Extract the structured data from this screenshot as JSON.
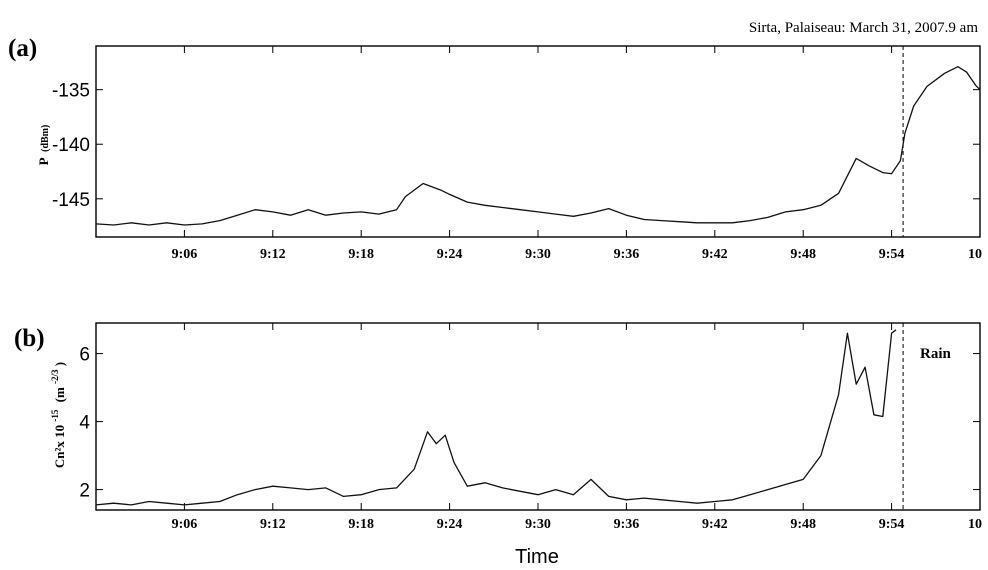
{
  "figure": {
    "title": "Sirta, Palaiseau: March 31, 2007.9 am",
    "xlabel": "Time"
  },
  "chart_data": [
    {
      "type": "line",
      "panel": "(a)",
      "ylabel": "P (dBm)",
      "ylabel_main": "P",
      "ylabel_unit": "(dBm)",
      "xlim": [
        9.0,
        10.0
      ],
      "ylim": [
        -148.5,
        -131
      ],
      "xtick_values": [
        9.1,
        9.2,
        9.3,
        9.4,
        9.5,
        9.6,
        9.7,
        9.8,
        9.9,
        10.0
      ],
      "xtick_labels": [
        "9:06",
        "9:12",
        "9:18",
        "9:24",
        "9:30",
        "9:36",
        "9:42",
        "9:48",
        "9:54",
        "10"
      ],
      "ytick_values": [
        -135,
        -140,
        -145
      ],
      "ytick_labels": [
        "-135",
        "-140",
        "-145"
      ],
      "vline_x": 9.913,
      "grid": false,
      "x": [
        9.0,
        9.02,
        9.04,
        9.06,
        9.08,
        9.1,
        9.12,
        9.14,
        9.16,
        9.18,
        9.2,
        9.22,
        9.24,
        9.26,
        9.28,
        9.3,
        9.32,
        9.34,
        9.35,
        9.37,
        9.39,
        9.4,
        9.42,
        9.44,
        9.46,
        9.48,
        9.5,
        9.52,
        9.54,
        9.56,
        9.58,
        9.6,
        9.62,
        9.64,
        9.66,
        9.68,
        9.7,
        9.72,
        9.74,
        9.76,
        9.78,
        9.8,
        9.82,
        9.84,
        9.86,
        9.875,
        9.89,
        9.9,
        9.91,
        9.915,
        9.925,
        9.94,
        9.96,
        9.975,
        9.985,
        9.995,
        10.0
      ],
      "y": [
        -147.3,
        -147.4,
        -147.2,
        -147.4,
        -147.2,
        -147.4,
        -147.3,
        -147.0,
        -146.5,
        -146.0,
        -146.2,
        -146.5,
        -146.0,
        -146.5,
        -146.3,
        -146.2,
        -146.4,
        -146.0,
        -144.8,
        -143.6,
        -144.2,
        -144.6,
        -145.3,
        -145.6,
        -145.8,
        -146.0,
        -146.2,
        -146.4,
        -146.6,
        -146.3,
        -145.9,
        -146.5,
        -146.9,
        -147.0,
        -147.1,
        -147.2,
        -147.2,
        -147.2,
        -147.0,
        -146.7,
        -146.2,
        -146.0,
        -145.6,
        -144.5,
        -141.3,
        -142.0,
        -142.6,
        -142.7,
        -141.5,
        -139.0,
        -136.5,
        -134.7,
        -133.5,
        -132.9,
        -133.4,
        -134.6,
        -135.0
      ]
    },
    {
      "type": "line",
      "panel": "(b)",
      "ylabel": "Cn² x 10⁻¹⁵ (m⁻²ᐟ³)",
      "ylabel_main": "Cn²x 10",
      "ylabel_exp": "-15",
      "ylabel_unit": "(m",
      "ylabel_unit_exp": "-2/3",
      "ylabel_close": ")",
      "xlim": [
        9.0,
        10.0
      ],
      "ylim": [
        1.4,
        6.9
      ],
      "xtick_values": [
        9.1,
        9.2,
        9.3,
        9.4,
        9.5,
        9.6,
        9.7,
        9.8,
        9.9,
        10.0
      ],
      "xtick_labels": [
        "9:06",
        "9:12",
        "9:18",
        "9:24",
        "9:30",
        "9:36",
        "9:42",
        "9:48",
        "9:54",
        "10"
      ],
      "ytick_values": [
        6,
        4,
        2
      ],
      "ytick_labels": [
        "6",
        "4",
        "2"
      ],
      "vline_x": 9.913,
      "annotation": "Rain",
      "grid": false,
      "x": [
        9.0,
        9.02,
        9.04,
        9.06,
        9.08,
        9.1,
        9.12,
        9.14,
        9.16,
        9.18,
        9.2,
        9.22,
        9.24,
        9.26,
        9.28,
        9.3,
        9.32,
        9.34,
        9.36,
        9.375,
        9.385,
        9.395,
        9.405,
        9.42,
        9.44,
        9.46,
        9.48,
        9.5,
        9.52,
        9.54,
        9.56,
        9.58,
        9.6,
        9.62,
        9.64,
        9.66,
        9.68,
        9.7,
        9.72,
        9.74,
        9.76,
        9.78,
        9.8,
        9.82,
        9.84,
        9.85,
        9.86,
        9.87,
        9.88,
        9.89,
        9.9,
        9.905
      ],
      "y": [
        1.55,
        1.6,
        1.55,
        1.65,
        1.6,
        1.55,
        1.6,
        1.65,
        1.85,
        2.0,
        2.1,
        2.05,
        2.0,
        2.05,
        1.8,
        1.85,
        2.0,
        2.05,
        2.6,
        3.7,
        3.35,
        3.6,
        2.8,
        2.1,
        2.2,
        2.05,
        1.95,
        1.85,
        2.0,
        1.85,
        2.3,
        1.8,
        1.7,
        1.75,
        1.7,
        1.65,
        1.6,
        1.65,
        1.7,
        1.85,
        2.0,
        2.15,
        2.3,
        3.0,
        4.8,
        6.6,
        5.1,
        5.6,
        4.2,
        4.15,
        6.6,
        6.7
      ]
    }
  ]
}
